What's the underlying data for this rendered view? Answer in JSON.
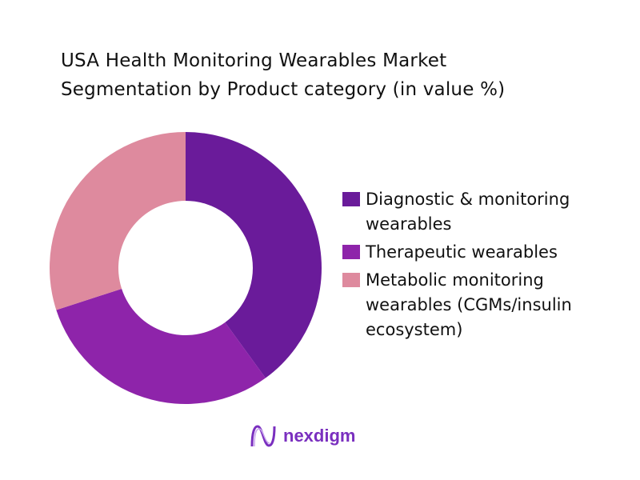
{
  "chart_data": {
    "type": "pie",
    "variant": "donut",
    "title_lines": [
      "USA Health Monitoring Wearables Market",
      "Segmentation by Product category (in value %)"
    ],
    "categories": [
      "Diagnostic & monitoring wearables",
      "Therapeutic wearables",
      "Metabolic monitoring wearables (CGMs/insulin ecosystem)"
    ],
    "values": [
      40,
      30,
      30
    ],
    "colors": [
      "#6a1b9a",
      "#8e24aa",
      "#de8a9e"
    ],
    "legend_position": "right"
  },
  "legend": [
    {
      "label": "Diagnostic & monitoring wearables",
      "color": "#6a1b9a"
    },
    {
      "label": "Therapeutic wearables",
      "color": "#8e24aa"
    },
    {
      "label": "Metabolic monitoring wearables (CGMs/insulin ecosystem)",
      "color": "#de8a9e"
    }
  ],
  "brand": {
    "name": "nexdigm",
    "color": "#7a2fbf"
  }
}
